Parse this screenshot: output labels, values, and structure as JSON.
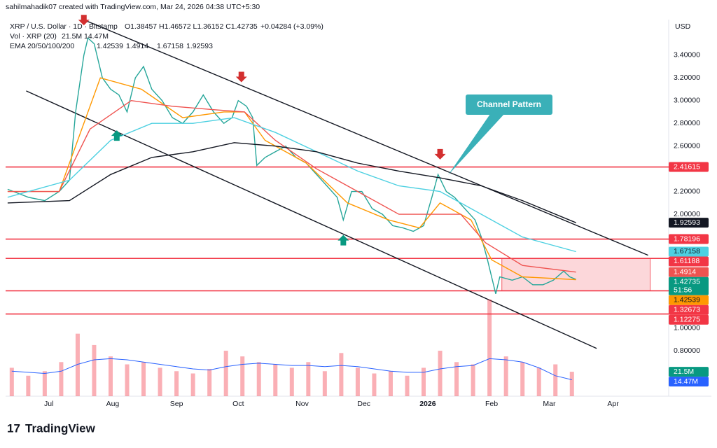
{
  "header": {
    "credit": "sahilmahadik07 created with TradingView.com, Mar 24, 2026 04:38 UTC+5:30",
    "symbol": "XRP / U.S. Dollar · 1D · Bitstamp",
    "ohlc": "O1.38457 H1.46572 L1.36152 C1.42735",
    "change": "+0.04284 (+3.09%)",
    "vol_label": "Vol · XRP (20)",
    "ema_label": "EMA 20/50/100/200",
    "currency": "USD",
    "countdown": "51:56"
  },
  "footer": {
    "logo": "TradingView"
  },
  "chart_data": {
    "type": "line",
    "annotation": "Channel Pattern",
    "xlim": [
      -21,
      301
    ],
    "ylim": [
      0.4,
      3.7
    ],
    "y2lim": [
      0,
      330
    ],
    "grid": false,
    "xticks": [
      {
        "value": 0,
        "label": "Jul"
      },
      {
        "value": 31,
        "label": "Aug"
      },
      {
        "value": 62,
        "label": "Sep"
      },
      {
        "value": 92,
        "label": "Oct"
      },
      {
        "value": 123,
        "label": "Nov"
      },
      {
        "value": 153,
        "label": "Dec"
      },
      {
        "value": 184,
        "label": "2026"
      },
      {
        "value": 215,
        "label": "Feb"
      },
      {
        "value": 243,
        "label": "Mar"
      },
      {
        "value": 274,
        "label": "Apr"
      }
    ],
    "yticks": [
      {
        "value": 3.4,
        "label": "3.40000"
      },
      {
        "value": 3.2,
        "label": "3.20000"
      },
      {
        "value": 3.0,
        "label": "3.00000"
      },
      {
        "value": 2.8,
        "label": "2.80000"
      },
      {
        "value": 2.6,
        "label": "2.60000"
      },
      {
        "value": 2.2,
        "label": "2.20000"
      },
      {
        "value": 2.0,
        "label": "2.00000"
      },
      {
        "value": 1.0,
        "label": "1.00000"
      },
      {
        "value": 0.8,
        "label": "0.80000"
      }
    ],
    "series": [
      {
        "color": "#26a69a",
        "badge_color": "#089981",
        "x": [
          -20,
          -10,
          -2,
          5,
          10,
          13,
          17,
          19,
          22,
          26,
          30,
          34,
          38,
          42,
          46,
          50,
          55,
          60,
          65,
          70,
          75,
          80,
          85,
          89,
          92,
          96,
          99,
          101,
          105,
          110,
          115,
          120,
          125,
          130,
          135,
          140,
          143,
          147,
          152,
          157,
          162,
          167,
          172,
          177,
          182,
          186,
          189,
          193,
          197,
          202,
          207,
          210,
          213,
          215,
          217,
          219,
          225,
          230,
          235,
          240,
          245,
          250,
          253,
          256
        ],
        "values": [
          2.22,
          2.15,
          2.12,
          2.2,
          2.3,
          2.9,
          3.4,
          3.55,
          3.5,
          3.2,
          3.1,
          3.05,
          2.9,
          3.2,
          3.3,
          3.1,
          3.0,
          2.85,
          2.8,
          2.9,
          3.05,
          2.9,
          2.8,
          2.85,
          3.0,
          2.95,
          2.85,
          2.43,
          2.5,
          2.55,
          2.6,
          2.5,
          2.45,
          2.35,
          2.25,
          2.15,
          1.95,
          2.2,
          2.2,
          2.05,
          2.0,
          1.9,
          1.88,
          1.85,
          1.9,
          2.15,
          2.35,
          2.2,
          2.15,
          2.05,
          1.95,
          1.8,
          1.6,
          1.45,
          1.3,
          1.45,
          1.42,
          1.45,
          1.38,
          1.38,
          1.42,
          1.5,
          1.45,
          1.42735
        ]
      },
      {
        "color": "#ff9800",
        "x": [
          -20,
          5,
          15,
          25,
          45,
          65,
          85,
          95,
          105,
          125,
          145,
          165,
          180,
          190,
          205,
          215,
          230,
          256
        ],
        "values": [
          2.2,
          2.2,
          2.7,
          3.2,
          3.1,
          2.85,
          2.9,
          2.9,
          2.65,
          2.45,
          2.1,
          1.95,
          1.88,
          2.1,
          1.95,
          1.6,
          1.45,
          1.42539
        ]
      },
      {
        "color": "#ef5350",
        "x": [
          -20,
          5,
          20,
          40,
          60,
          80,
          95,
          110,
          130,
          150,
          170,
          188,
          200,
          212,
          230,
          256
        ],
        "values": [
          2.2,
          2.2,
          2.75,
          3.0,
          2.95,
          2.92,
          2.9,
          2.65,
          2.4,
          2.2,
          2.0,
          2.0,
          2.0,
          1.75,
          1.55,
          1.4914
        ]
      },
      {
        "color": "#4dd0e1",
        "x": [
          -20,
          10,
          30,
          50,
          70,
          90,
          110,
          130,
          150,
          170,
          190,
          210,
          230,
          256
        ],
        "values": [
          2.15,
          2.3,
          2.65,
          2.8,
          2.8,
          2.85,
          2.72,
          2.55,
          2.38,
          2.25,
          2.2,
          2.0,
          1.8,
          1.67158
        ]
      },
      {
        "color": "#131722",
        "x": [
          -20,
          10,
          30,
          50,
          70,
          90,
          110,
          130,
          150,
          170,
          190,
          210,
          230,
          256
        ],
        "values": [
          2.1,
          2.12,
          2.35,
          2.5,
          2.55,
          2.63,
          2.6,
          2.55,
          2.45,
          2.38,
          2.32,
          2.25,
          2.12,
          1.92593
        ]
      },
      {
        "type": "bar",
        "axis": "y2",
        "color": "#f2364566",
        "badge_color": "#089981",
        "x": [
          -18,
          -10,
          -2,
          6,
          14,
          22,
          30,
          38,
          46,
          54,
          62,
          70,
          78,
          86,
          94,
          102,
          110,
          118,
          126,
          134,
          142,
          150,
          158,
          166,
          174,
          182,
          190,
          198,
          206,
          214,
          222,
          230,
          238,
          246,
          254
        ],
        "values": [
          25,
          18,
          22,
          30,
          55,
          45,
          35,
          28,
          30,
          25,
          22,
          20,
          24,
          40,
          35,
          30,
          28,
          25,
          30,
          22,
          38,
          25,
          20,
          22,
          18,
          25,
          40,
          30,
          28,
          85,
          35,
          30,
          25,
          28,
          21.5
        ],
        "value_labels": [
          null,
          null,
          null,
          null,
          null,
          null,
          null,
          null,
          null,
          null,
          null,
          null,
          null,
          null,
          null,
          null,
          null,
          null,
          null,
          null,
          null,
          null,
          null,
          null,
          null,
          null,
          null,
          null,
          null,
          null,
          null,
          null,
          null,
          null,
          "21.5M"
        ]
      },
      {
        "axis": "y2",
        "color": "#2962ff",
        "badge_color": "#2962ff",
        "x": [
          -18,
          -10,
          -2,
          6,
          14,
          22,
          30,
          38,
          46,
          54,
          62,
          70,
          78,
          86,
          94,
          102,
          110,
          118,
          126,
          134,
          142,
          150,
          158,
          166,
          174,
          182,
          190,
          198,
          206,
          214,
          222,
          230,
          238,
          246,
          254
        ],
        "values": [
          22,
          21,
          20,
          22,
          28,
          32,
          33,
          32,
          30,
          28,
          26,
          24,
          23,
          26,
          28,
          29,
          28,
          27,
          27,
          26,
          27,
          26,
          24,
          22,
          21,
          21,
          24,
          26,
          27,
          33,
          32,
          30,
          25,
          18,
          14.47
        ],
        "value_labels": [
          null,
          null,
          null,
          null,
          null,
          null,
          null,
          null,
          null,
          null,
          null,
          null,
          null,
          null,
          null,
          null,
          null,
          null,
          null,
          null,
          null,
          null,
          null,
          null,
          null,
          null,
          null,
          null,
          null,
          null,
          null,
          null,
          null,
          null,
          "14.47M"
        ]
      }
    ],
    "levels": [
      2.41615,
      1.78196,
      1.61188,
      1.32673,
      1.12275
    ],
    "level_color": "#f23645",
    "zone": {
      "x": [
        220,
        292
      ],
      "y": [
        1.32673,
        1.61188
      ],
      "color": "#f2364533"
    },
    "trendlines": [
      {
        "x": [
          17,
          291
        ],
        "y": [
          3.71,
          1.64
        ]
      },
      {
        "x": [
          -11,
          266
        ],
        "y": [
          3.085,
          0.82
        ]
      }
    ],
    "markers": [
      {
        "x": 17,
        "y": 3.68,
        "dir": "down"
      },
      {
        "x": 93.5,
        "y": 3.18,
        "dir": "down"
      },
      {
        "x": 190,
        "y": 2.5,
        "dir": "down"
      },
      {
        "x": 33,
        "y": 2.72,
        "dir": "up"
      },
      {
        "x": 143,
        "y": 1.8,
        "dir": "up"
      }
    ]
  }
}
